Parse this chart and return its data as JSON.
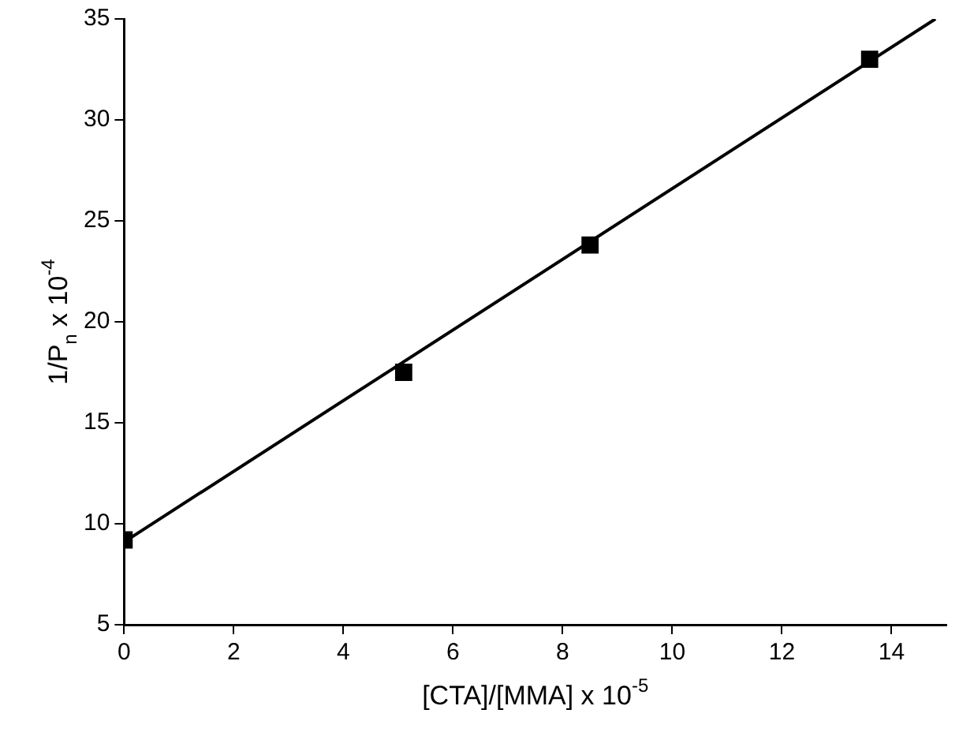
{
  "chart_data": {
    "type": "scatter",
    "xlabel": "[CTA]/[MMA] x 10$^{-5}$",
    "ylabel": "1/P$_{n}$ x 10$^{-4}$",
    "xlim": [
      0,
      15
    ],
    "xticks": [
      0,
      2,
      4,
      6,
      8,
      10,
      12,
      14
    ],
    "ylim": [
      5,
      35
    ],
    "yticks": [
      5,
      10,
      15,
      20,
      25,
      30,
      35
    ],
    "grid": false,
    "legend": false,
    "marker": "square",
    "series": [
      {
        "color": "#000000",
        "x": [
          0,
          5.1,
          8.5,
          13.6
        ],
        "values": [
          9.2,
          17.5,
          23.8,
          33.0
        ]
      },
      {
        "type": "line",
        "color": "#000000",
        "x": [
          0,
          14.8
        ],
        "values": [
          9.1,
          35.0
        ],
        "marker": "none",
        "line_style": "solid"
      }
    ]
  }
}
